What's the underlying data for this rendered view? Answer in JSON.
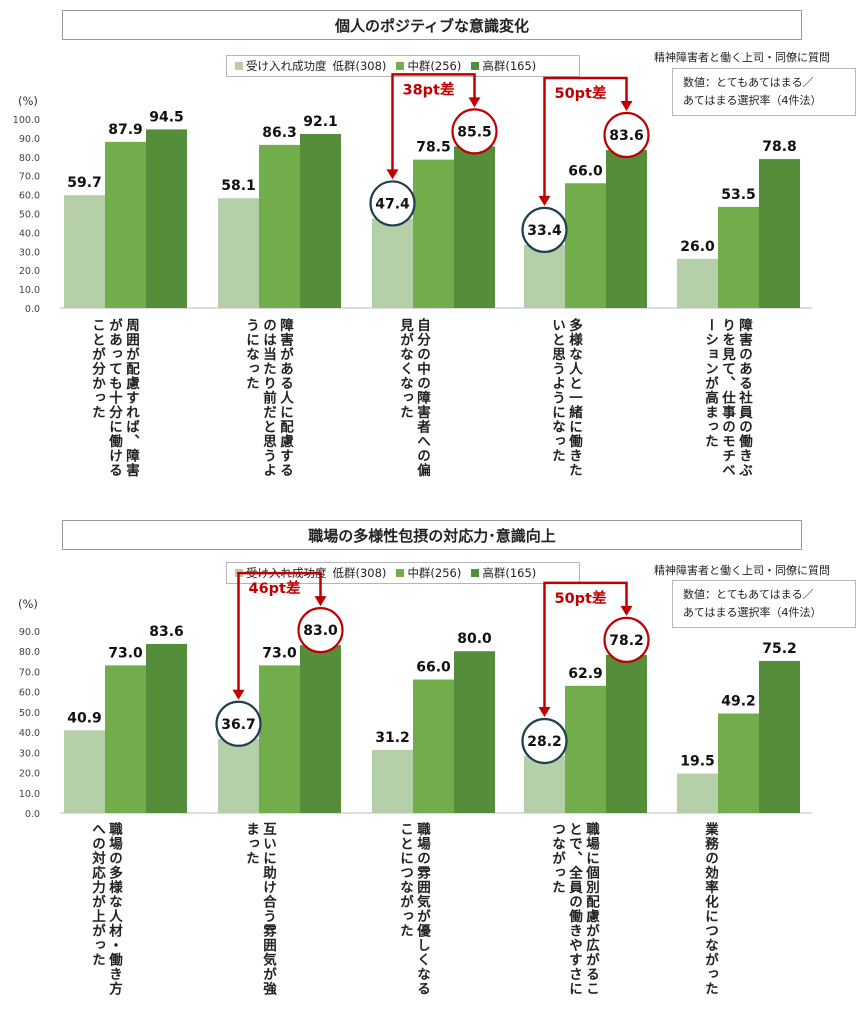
{
  "colors": {
    "low": "#b5cfa8",
    "mid": "#72ad4c",
    "high": "#558e3b",
    "accent": "#c00000",
    "circle": "#1f3f4f"
  },
  "chart_data": [
    {
      "type": "bar",
      "title": "個人のポジティブな意識変化",
      "ylabel": "(%)",
      "ylim": [
        0,
        100
      ],
      "yticks": [
        "100.0",
        "90.0",
        "80.0",
        "70.0",
        "60.0",
        "50.0",
        "40.0",
        "30.0",
        "20.0",
        "10.0",
        "0.0"
      ],
      "legend": {
        "prefix": "受け入れ成功度",
        "items": [
          "低群(308)",
          "中群(256)",
          "高群(165)"
        ]
      },
      "note_head": "精神障害者と働く上司・同僚に質問",
      "note_lines": [
        "数値：とてもあてはまる／",
        "あてはまる選択率（4件法）"
      ],
      "categories": [
        "周囲が配慮すれば、障害があっても十分に働けることが分かった",
        "障害がある人に配慮するのは当たり前だと思うようになった",
        "自分の中の障害者への偏見がなくなった",
        "多様な人と一緒に働きたいと思うようになった",
        "障害のある社員の働きぶりを見て、仕事のモチベーションが高まった"
      ],
      "series": [
        {
          "name": "低群(308)",
          "values": [
            59.7,
            58.1,
            47.4,
            33.4,
            26.0
          ]
        },
        {
          "name": "中群(256)",
          "values": [
            87.9,
            86.3,
            78.5,
            66.0,
            53.5
          ]
        },
        {
          "name": "高群(165)",
          "values": [
            94.5,
            92.1,
            85.5,
            83.6,
            78.8
          ]
        }
      ],
      "annotations": [
        {
          "category": 2,
          "label": "38pt差"
        },
        {
          "category": 3,
          "label": "50pt差"
        }
      ]
    },
    {
      "type": "bar",
      "title": "職場の多様性包摂の対応力･意識向上",
      "ylabel": "(%)",
      "ylim": [
        0,
        90
      ],
      "yticks": [
        "90.0",
        "80.0",
        "70.0",
        "60.0",
        "50.0",
        "40.0",
        "30.0",
        "20.0",
        "10.0",
        "0.0"
      ],
      "legend": {
        "prefix": "受け入れ成功度",
        "items": [
          "低群(308)",
          "中群(256)",
          "高群(165)"
        ]
      },
      "note_head": "精神障害者と働く上司・同僚に質問",
      "note_lines": [
        "数値：とてもあてはまる／",
        "あてはまる選択率（4件法）"
      ],
      "categories": [
        "職場の多様な人材・働き方への対応力が上がった",
        "互いに助け合う雰囲気が強まった",
        "職場の雰囲気が優しくなることにつながった",
        "職場に個別配慮が広がることで、全員の働きやすさにつながった",
        "業務の効率化につながった"
      ],
      "series": [
        {
          "name": "低群(308)",
          "values": [
            40.9,
            36.7,
            31.2,
            28.2,
            19.5
          ]
        },
        {
          "name": "中群(256)",
          "values": [
            73.0,
            73.0,
            66.0,
            62.9,
            49.2
          ]
        },
        {
          "name": "高群(165)",
          "values": [
            83.6,
            83.0,
            80.0,
            78.2,
            75.2
          ]
        }
      ],
      "annotations": [
        {
          "category": 1,
          "label": "46pt差"
        },
        {
          "category": 3,
          "label": "50pt差"
        }
      ]
    }
  ]
}
